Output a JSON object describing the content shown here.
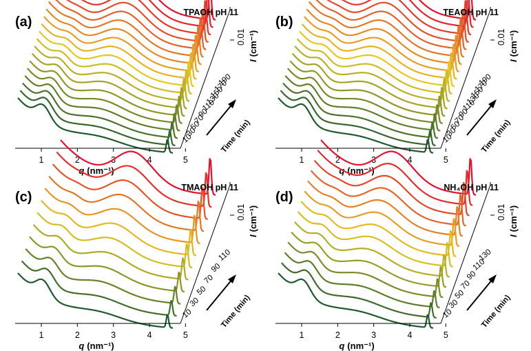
{
  "chart_data": [
    {
      "panel_label": "(a)",
      "title": "TPAOH pH 11",
      "type": "line",
      "x_ticks": [
        "1",
        "2",
        "3",
        "4",
        "5"
      ],
      "xlabel_base": "q",
      "xlabel_unit": "(nm⁻¹)",
      "ylabel_base": "I",
      "ylabel_unit": "(cm⁻¹)",
      "y_tick": "0.01",
      "time_label": "Time (min)",
      "time_ticks": [
        "10",
        "30",
        "50",
        "70",
        "90",
        "110",
        "130",
        "150",
        "170",
        "190"
      ],
      "time_range": [
        10,
        190
      ],
      "series_count": 19
    },
    {
      "panel_label": "(b)",
      "title": "TEAOH pH 11",
      "type": "line",
      "x_ticks": [
        "1",
        "2",
        "3",
        "4",
        "5"
      ],
      "xlabel_base": "q",
      "xlabel_unit": "(nm⁻¹)",
      "ylabel_base": "I",
      "ylabel_unit": "(cm⁻¹)",
      "y_tick": "0.01",
      "time_label": "Time (min)",
      "time_ticks": [
        "10",
        "30",
        "50",
        "70",
        "90",
        "110",
        "130",
        "150",
        "170",
        "190"
      ],
      "time_range": [
        10,
        190
      ],
      "series_count": 19
    },
    {
      "panel_label": "(c)",
      "title": "TMAOH pH 11",
      "type": "line",
      "x_ticks": [
        "1",
        "2",
        "3",
        "4",
        "5"
      ],
      "xlabel_base": "q",
      "xlabel_unit": "(nm⁻¹)",
      "ylabel_base": "I",
      "ylabel_unit": "(cm⁻¹)",
      "y_tick": "0.01",
      "time_label": "Time (min)",
      "time_ticks": [
        "10",
        "30",
        "50",
        "70",
        "90",
        "110"
      ],
      "time_range": [
        10,
        110
      ],
      "series_count": 12
    },
    {
      "panel_label": "(d)",
      "title": "NH₄OH pH 11",
      "type": "line",
      "x_ticks": [
        "1",
        "2",
        "3",
        "4",
        "5"
      ],
      "xlabel_base": "q",
      "xlabel_unit": "(nm⁻¹)",
      "ylabel_base": "I",
      "ylabel_unit": "(cm⁻¹)",
      "y_tick": "0.01",
      "time_label": "Time (min)",
      "time_ticks": [
        "10",
        "30",
        "50",
        "70",
        "90",
        "110",
        "130"
      ],
      "time_range": [
        10,
        130
      ],
      "series_count": 14
    }
  ],
  "colors": {
    "first": "#1f5a2e",
    "middle": "#e6c71e",
    "last": "#e4102e"
  }
}
